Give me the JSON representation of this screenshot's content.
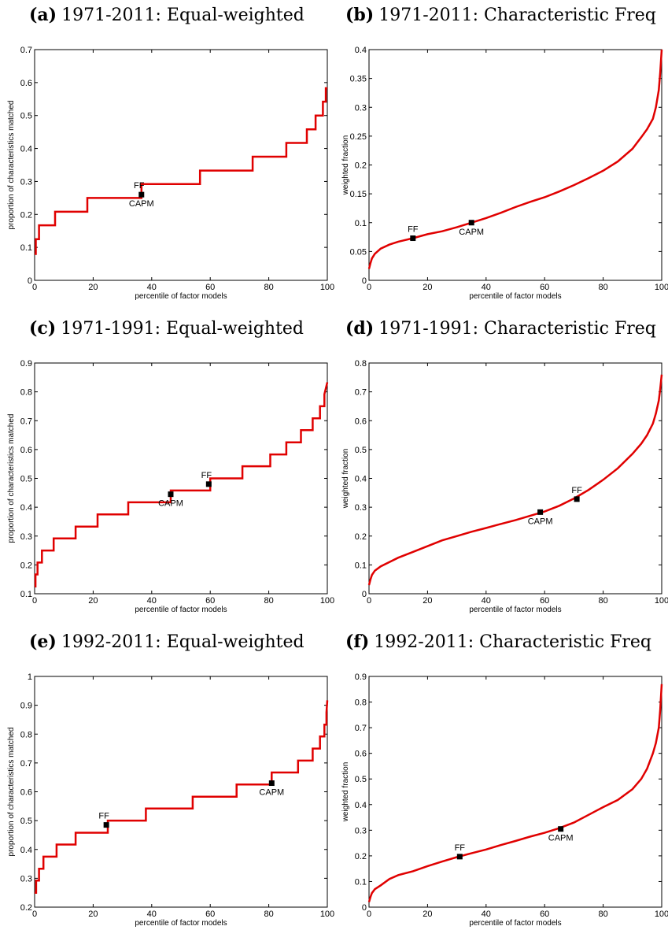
{
  "chart_data": [
    {
      "panel_label": "(a)",
      "title": "1971-2011: Equal-weighted",
      "type": "line",
      "step": true,
      "xlabel": "percentile of factor models",
      "ylabel": "proportion of characteristics matched",
      "xlim": [
        0,
        100
      ],
      "ylim": [
        0,
        0.7
      ],
      "xticks": [
        0,
        20,
        40,
        60,
        80,
        100
      ],
      "yticks": [
        0,
        0.1,
        0.2,
        0.3,
        0.4,
        0.5,
        0.6,
        0.7
      ],
      "line_color": "#e00000",
      "series": [
        {
          "x": [
            0,
            0.4,
            0.4,
            1.5,
            1.5,
            7,
            7,
            18,
            18,
            36.5,
            36.5,
            56.5,
            56.5,
            74.5,
            74.5,
            86,
            86,
            93,
            93,
            96,
            96,
            98.5,
            98.5,
            99.5,
            99.5,
            100
          ],
          "y": [
            0.08,
            0.08,
            0.125,
            0.125,
            0.167,
            0.167,
            0.208,
            0.208,
            0.25,
            0.25,
            0.292,
            0.292,
            0.333,
            0.333,
            0.375,
            0.375,
            0.417,
            0.417,
            0.458,
            0.458,
            0.5,
            0.5,
            0.542,
            0.542,
            0.583,
            0.583
          ]
        }
      ],
      "markers": [
        {
          "x": 36.5,
          "y": 0.26,
          "label": "FF",
          "label_pos": "above-left"
        },
        {
          "x": 36.5,
          "y": 0.26,
          "label": "CAPM",
          "label_pos": "below"
        }
      ]
    },
    {
      "panel_label": "(b)",
      "title": "1971-2011: Characteristic Freq",
      "type": "line",
      "step": false,
      "xlabel": "percentile of factor models",
      "ylabel": "weighted fraction",
      "xlim": [
        0,
        100
      ],
      "ylim": [
        0,
        0.4
      ],
      "xticks": [
        0,
        20,
        40,
        60,
        80,
        100
      ],
      "yticks": [
        0,
        0.05,
        0.1,
        0.15,
        0.2,
        0.25,
        0.3,
        0.35,
        0.4
      ],
      "line_color": "#e00000",
      "series": [
        {
          "x": [
            0,
            0.5,
            1,
            2,
            4,
            7,
            10,
            15,
            20,
            25,
            30,
            35,
            40,
            45,
            50,
            55,
            60,
            65,
            70,
            75,
            80,
            85,
            90,
            93,
            95,
            97,
            98,
            99,
            99.5,
            100
          ],
          "y": [
            0.02,
            0.03,
            0.038,
            0.046,
            0.055,
            0.062,
            0.067,
            0.073,
            0.08,
            0.085,
            0.092,
            0.1,
            0.108,
            0.117,
            0.127,
            0.136,
            0.144,
            0.154,
            0.165,
            0.177,
            0.19,
            0.206,
            0.228,
            0.248,
            0.262,
            0.28,
            0.3,
            0.33,
            0.36,
            0.4
          ]
        }
      ],
      "markers": [
        {
          "x": 15,
          "y": 0.073,
          "label": "FF",
          "label_pos": "above"
        },
        {
          "x": 35,
          "y": 0.1,
          "label": "CAPM",
          "label_pos": "below"
        }
      ]
    },
    {
      "panel_label": "(c)",
      "title": "1971-1991: Equal-weighted",
      "type": "line",
      "step": true,
      "xlabel": "percentile of factor models",
      "ylabel": "proportion of characteristics matched",
      "xlim": [
        0,
        100
      ],
      "ylim": [
        0.1,
        0.9
      ],
      "xticks": [
        0,
        20,
        40,
        60,
        80,
        100
      ],
      "yticks": [
        0.1,
        0.2,
        0.3,
        0.4,
        0.5,
        0.6,
        0.7,
        0.8,
        0.9
      ],
      "line_color": "#e00000",
      "series": [
        {
          "x": [
            0,
            0.3,
            0.3,
            1,
            1,
            2.5,
            2.5,
            6.5,
            6.5,
            14,
            14,
            21.5,
            21.5,
            32,
            32,
            46.5,
            46.5,
            60,
            60,
            71,
            71,
            80.5,
            80.5,
            86,
            86,
            91,
            91,
            95,
            95,
            97.5,
            97.5,
            99,
            99,
            100
          ],
          "y": [
            0.125,
            0.125,
            0.167,
            0.167,
            0.208,
            0.208,
            0.25,
            0.25,
            0.292,
            0.292,
            0.333,
            0.333,
            0.375,
            0.375,
            0.417,
            0.417,
            0.458,
            0.458,
            0.5,
            0.5,
            0.542,
            0.542,
            0.583,
            0.583,
            0.625,
            0.625,
            0.667,
            0.667,
            0.708,
            0.708,
            0.75,
            0.75,
            0.792,
            0.833
          ]
        }
      ],
      "markers": [
        {
          "x": 46.5,
          "y": 0.445,
          "label": "CAPM",
          "label_pos": "below"
        },
        {
          "x": 59.5,
          "y": 0.48,
          "label": "FF",
          "label_pos": "above-left"
        }
      ]
    },
    {
      "panel_label": "(d)",
      "title": "1971-1991: Characteristic Freq",
      "type": "line",
      "step": false,
      "xlabel": "percentile of factor models",
      "ylabel": "weighted fraction",
      "xlim": [
        0,
        100
      ],
      "ylim": [
        0,
        0.8
      ],
      "xticks": [
        0,
        20,
        40,
        60,
        80,
        100
      ],
      "yticks": [
        0,
        0.1,
        0.2,
        0.3,
        0.4,
        0.5,
        0.6,
        0.7,
        0.8
      ],
      "line_color": "#e00000",
      "series": [
        {
          "x": [
            0,
            0.5,
            1,
            2,
            4,
            7,
            10,
            15,
            20,
            25,
            30,
            35,
            40,
            45,
            50,
            55,
            60,
            65,
            70,
            75,
            80,
            85,
            90,
            93,
            95,
            97,
            98,
            99,
            99.5,
            100
          ],
          "y": [
            0.03,
            0.05,
            0.065,
            0.08,
            0.095,
            0.11,
            0.125,
            0.145,
            0.165,
            0.185,
            0.2,
            0.215,
            0.228,
            0.242,
            0.255,
            0.27,
            0.285,
            0.305,
            0.33,
            0.36,
            0.395,
            0.435,
            0.485,
            0.52,
            0.55,
            0.59,
            0.625,
            0.67,
            0.71,
            0.76
          ]
        }
      ],
      "markers": [
        {
          "x": 58.5,
          "y": 0.283,
          "label": "CAPM",
          "label_pos": "below"
        },
        {
          "x": 71,
          "y": 0.328,
          "label": "FF",
          "label_pos": "above"
        }
      ]
    },
    {
      "panel_label": "(e)",
      "title": "1992-2011: Equal-weighted",
      "type": "line",
      "step": true,
      "xlabel": "percentile of factor models",
      "ylabel": "proportion of characteristics matched",
      "xlim": [
        0,
        100
      ],
      "ylim": [
        0.2,
        1
      ],
      "xticks": [
        0,
        20,
        40,
        60,
        80,
        100
      ],
      "yticks": [
        0.2,
        0.3,
        0.4,
        0.5,
        0.6,
        0.7,
        0.8,
        0.9,
        1
      ],
      "line_color": "#e00000",
      "series": [
        {
          "x": [
            0,
            0.5,
            0.5,
            1.5,
            1.5,
            3,
            3,
            7.5,
            7.5,
            14,
            14,
            25,
            25,
            38,
            38,
            54,
            54,
            69,
            69,
            81,
            81,
            90,
            90,
            95,
            95,
            97.5,
            97.5,
            99,
            99,
            99.7,
            99.7,
            100
          ],
          "y": [
            0.25,
            0.25,
            0.292,
            0.292,
            0.333,
            0.333,
            0.375,
            0.375,
            0.417,
            0.417,
            0.458,
            0.458,
            0.5,
            0.5,
            0.542,
            0.542,
            0.583,
            0.583,
            0.625,
            0.625,
            0.667,
            0.667,
            0.708,
            0.708,
            0.75,
            0.75,
            0.792,
            0.792,
            0.833,
            0.833,
            0.875,
            0.917
          ]
        }
      ],
      "markers": [
        {
          "x": 24.5,
          "y": 0.485,
          "label": "FF",
          "label_pos": "above-left"
        },
        {
          "x": 81,
          "y": 0.63,
          "label": "CAPM",
          "label_pos": "below"
        }
      ]
    },
    {
      "panel_label": "(f)",
      "title": "1992-2011: Characteristic Freq",
      "type": "line",
      "step": false,
      "xlabel": "percentile of factor models",
      "ylabel": "weighted fraction",
      "xlim": [
        0,
        100
      ],
      "ylim": [
        0,
        0.9
      ],
      "xticks": [
        0,
        20,
        40,
        60,
        80,
        100
      ],
      "yticks": [
        0,
        0.1,
        0.2,
        0.3,
        0.4,
        0.5,
        0.6,
        0.7,
        0.8,
        0.9
      ],
      "line_color": "#e00000",
      "series": [
        {
          "x": [
            0,
            0.5,
            1,
            2,
            4,
            7,
            10,
            15,
            20,
            25,
            30,
            35,
            40,
            45,
            50,
            55,
            60,
            65,
            70,
            75,
            80,
            85,
            90,
            93,
            95,
            97,
            98,
            99,
            99.5,
            100
          ],
          "y": [
            0.02,
            0.04,
            0.055,
            0.07,
            0.085,
            0.11,
            0.125,
            0.14,
            0.16,
            0.178,
            0.195,
            0.21,
            0.225,
            0.242,
            0.258,
            0.275,
            0.29,
            0.308,
            0.33,
            0.36,
            0.39,
            0.418,
            0.46,
            0.5,
            0.54,
            0.6,
            0.64,
            0.7,
            0.77,
            0.87
          ]
        }
      ],
      "markers": [
        {
          "x": 31,
          "y": 0.197,
          "label": "FF",
          "label_pos": "above"
        },
        {
          "x": 65.5,
          "y": 0.305,
          "label": "CAPM",
          "label_pos": "below"
        }
      ]
    }
  ]
}
